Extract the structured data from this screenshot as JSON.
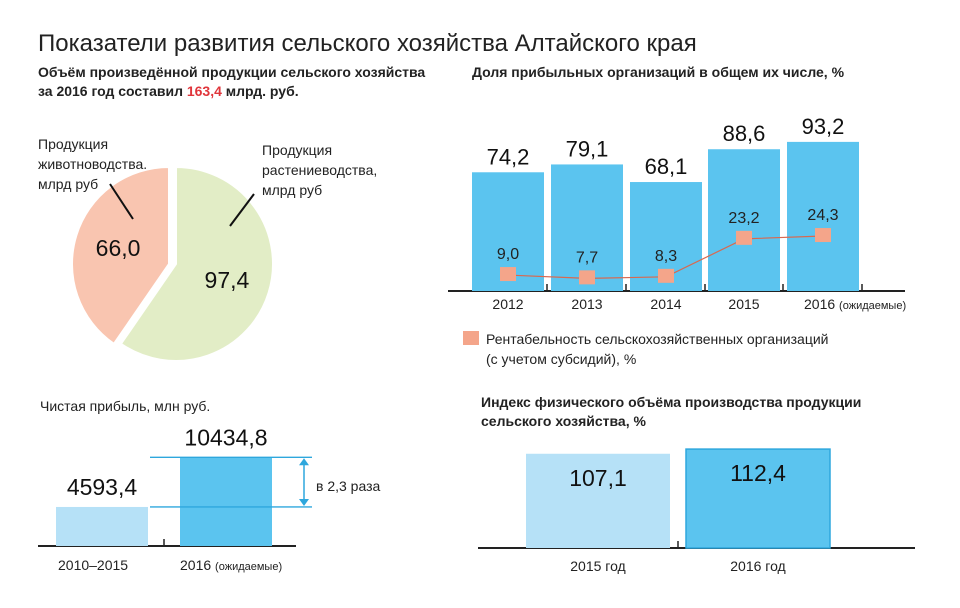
{
  "title": "Показатели развития сельского хозяйства Алтайского края",
  "pie_section": {
    "title_line1": "Объём произведённой продукции сельского хозяйства",
    "title_line2_pre": "за 2016 год  составил ",
    "title_line2_highlight": "163,4",
    "title_line2_post": " млрд. руб.",
    "label_animal_1": "Продукция",
    "label_animal_2": "животноводства,",
    "label_animal_3": "млрд руб",
    "label_crop_1": "Продукция",
    "label_crop_2": "растениеводства,",
    "label_crop_3": "млрд руб"
  },
  "profit_orgs_section": {
    "title": "Доля прибыльных организаций в общем их числе, %",
    "year_2016_label": "2016",
    "year_2016_note": "(ожидаемые)",
    "legend_line1": "Рентабельность сельскохозяйственных организаций",
    "legend_line2": "(с учетом субсидий), %"
  },
  "net_profit_section": {
    "title": "Чистая прибыль, млн руб.",
    "annotation": "в 2,3 раза",
    "cat1_label": "2010–2015",
    "cat2_label": "2016",
    "cat2_note": "(ожидаемые)"
  },
  "index_section": {
    "title_line1": "Индекс физического объёма производства продукции",
    "title_line2": "сельского хозяйства, %"
  },
  "colors": {
    "pie_animal": "#f9c5b0",
    "pie_crop": "#e2edc6",
    "bar_blue": "#5bc4ef",
    "bar_light": "#b6e1f7",
    "bar_border": "#2ea7dd",
    "marker": "#f4a58a",
    "line": "#d9684f",
    "highlight": "#e0353b"
  },
  "chart_data": [
    {
      "type": "pie",
      "title": "Объём произведённой продукции сельского хозяйства за 2016 год составил 163,4 млрд. руб.",
      "slices": [
        {
          "name": "Продукция животноводства, млрд руб",
          "value": 66.0,
          "label": "66,0"
        },
        {
          "name": "Продукция растениеводства, млрд руб",
          "value": 97.4,
          "label": "97,4"
        }
      ]
    },
    {
      "type": "bar",
      "title": "Доля прибыльных организаций в общем их числе, %",
      "categories": [
        "2012",
        "2013",
        "2014",
        "2015",
        "2016 (ожидаемые)"
      ],
      "series": [
        {
          "name": "Доля прибыльных организаций в общем их числе, %",
          "values": [
            74.2,
            79.1,
            68.1,
            88.6,
            93.2
          ],
          "labels": [
            "74,2",
            "79,1",
            "68,1",
            "88,6",
            "93,2"
          ]
        },
        {
          "name": "Рентабельность сельскохозяйственных организаций (с учетом субсидий), %",
          "type": "line",
          "values": [
            9.0,
            7.7,
            8.3,
            23.2,
            24.3
          ],
          "labels": [
            "9,0",
            "7,7",
            "8,3",
            "23,2",
            "24,3"
          ]
        }
      ]
    },
    {
      "type": "bar",
      "title": "Чистая прибыль, млн руб.",
      "categories": [
        "2010–2015",
        "2016 (ожидаемые)"
      ],
      "values": [
        4593.4,
        10434.8
      ],
      "labels": [
        "4593,4",
        "10434,8"
      ],
      "annotation": "в 2,3 раза"
    },
    {
      "type": "bar",
      "title": "Индекс физического объёма производства продукции сельского хозяйства, %",
      "categories": [
        "2015 год",
        "2016 год"
      ],
      "values": [
        107.1,
        112.4
      ],
      "labels": [
        "107,1",
        "112,4"
      ]
    }
  ]
}
